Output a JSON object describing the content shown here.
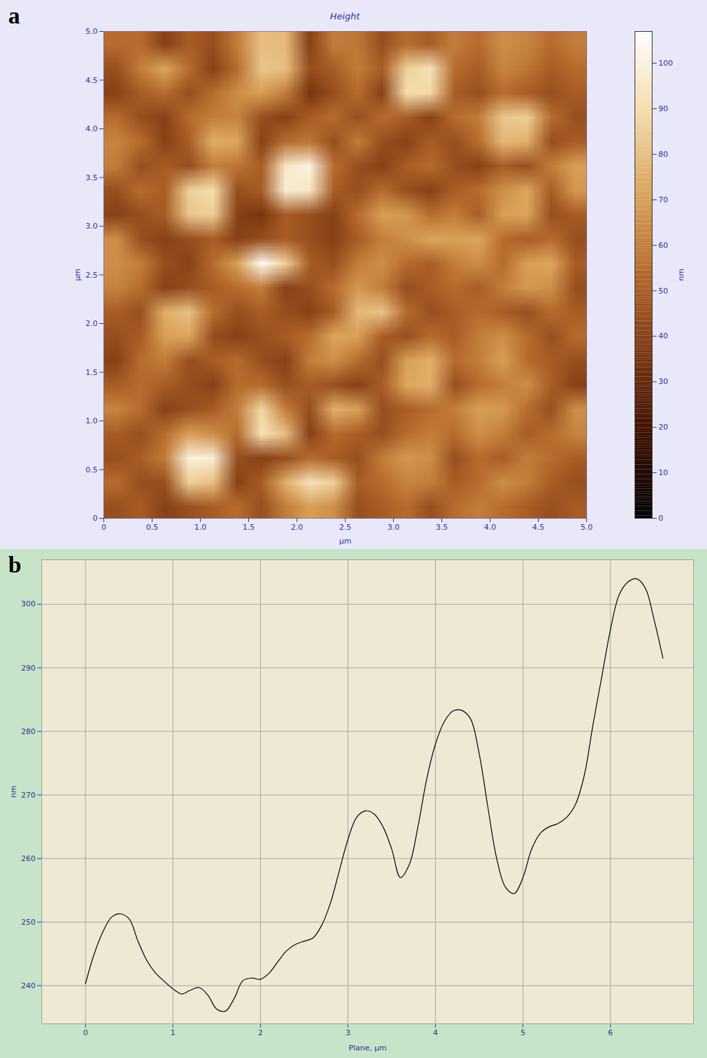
{
  "chart_data": [
    {
      "type": "heatmap",
      "panel_label": "a",
      "title": "Height",
      "x_label": "µm",
      "y_label": "µm",
      "xlim": [
        0,
        5
      ],
      "ylim": [
        0,
        5
      ],
      "xticks": [
        0,
        0.5,
        {
          "value": 1,
          "label": "1.0"
        },
        1.5,
        {
          "value": 2,
          "label": "2.0"
        },
        2.5,
        {
          "value": 3,
          "label": "3.0"
        },
        3.5,
        {
          "value": 4,
          "label": "4.0"
        },
        4.5,
        {
          "value": 5,
          "label": "5.0"
        }
      ],
      "yticks": [
        0,
        0.5,
        {
          "value": 1,
          "label": "1.0"
        },
        1.5,
        {
          "value": 2,
          "label": "2.0"
        },
        2.5,
        {
          "value": 3,
          "label": "3.0"
        },
        3.5,
        {
          "value": 4,
          "label": "4.0"
        },
        4.5,
        {
          "value": 5,
          "label": "5.0"
        }
      ],
      "cells": [
        [
          55,
          55,
          40,
          50,
          45,
          60,
          80,
          78,
          40,
          60,
          58,
          45,
          55,
          50,
          60,
          55,
          65,
          62,
          55,
          60
        ],
        [
          45,
          60,
          72,
          55,
          40,
          55,
          82,
          80,
          45,
          50,
          60,
          50,
          85,
          92,
          55,
          50,
          62,
          58,
          50,
          55
        ],
        [
          40,
          50,
          55,
          45,
          55,
          65,
          70,
          60,
          35,
          45,
          55,
          40,
          90,
          88,
          50,
          45,
          55,
          50,
          45,
          50
        ],
        [
          55,
          45,
          40,
          55,
          60,
          62,
          45,
          40,
          50,
          55,
          45,
          55,
          50,
          40,
          55,
          60,
          82,
          85,
          55,
          45
        ],
        [
          62,
          55,
          40,
          50,
          75,
          72,
          40,
          55,
          58,
          45,
          60,
          45,
          40,
          50,
          45,
          55,
          78,
          75,
          45,
          50
        ],
        [
          60,
          45,
          50,
          45,
          60,
          58,
          50,
          95,
          100,
          55,
          45,
          40,
          50,
          55,
          45,
          40,
          50,
          45,
          60,
          70
        ],
        [
          45,
          55,
          50,
          85,
          90,
          45,
          50,
          98,
          95,
          50,
          45,
          55,
          45,
          40,
          50,
          55,
          65,
          72,
          50,
          68
        ],
        [
          40,
          45,
          50,
          82,
          85,
          40,
          35,
          50,
          45,
          40,
          55,
          70,
          68,
          55,
          60,
          50,
          70,
          72,
          45,
          50
        ],
        [
          65,
          45,
          40,
          45,
          50,
          40,
          45,
          50,
          45,
          40,
          50,
          60,
          65,
          72,
          70,
          72,
          55,
          50,
          55,
          45
        ],
        [
          65,
          60,
          45,
          40,
          55,
          70,
          105,
          85,
          50,
          45,
          60,
          65,
          55,
          50,
          60,
          65,
          55,
          70,
          72,
          50
        ],
        [
          62,
          55,
          40,
          45,
          50,
          55,
          60,
          40,
          45,
          55,
          68,
          60,
          45,
          50,
          55,
          50,
          60,
          68,
          65,
          45
        ],
        [
          50,
          45,
          75,
          80,
          55,
          45,
          50,
          45,
          40,
          50,
          78,
          82,
          55,
          45,
          50,
          55,
          50,
          45,
          55,
          50
        ],
        [
          45,
          50,
          70,
          72,
          45,
          40,
          45,
          50,
          55,
          72,
          70,
          50,
          45,
          55,
          50,
          60,
          65,
          55,
          45,
          55
        ],
        [
          40,
          55,
          60,
          45,
          50,
          55,
          45,
          40,
          60,
          65,
          55,
          45,
          70,
          75,
          55,
          60,
          70,
          55,
          50,
          45
        ],
        [
          50,
          55,
          50,
          45,
          40,
          55,
          55,
          45,
          50,
          45,
          40,
          50,
          72,
          75,
          45,
          55,
          60,
          65,
          50,
          40
        ],
        [
          62,
          55,
          40,
          45,
          50,
          60,
          88,
          60,
          45,
          75,
          70,
          45,
          50,
          55,
          60,
          70,
          68,
          55,
          45,
          65
        ],
        [
          50,
          45,
          55,
          70,
          65,
          55,
          92,
          80,
          40,
          55,
          50,
          45,
          55,
          60,
          55,
          65,
          60,
          50,
          55,
          62
        ],
        [
          45,
          50,
          60,
          100,
          98,
          45,
          40,
          45,
          55,
          50,
          45,
          60,
          68,
          65,
          45,
          55,
          50,
          60,
          55,
          50
        ],
        [
          55,
          45,
          45,
          85,
          80,
          40,
          50,
          75,
          92,
          85,
          50,
          55,
          62,
          60,
          50,
          55,
          65,
          60,
          50,
          45
        ],
        [
          45,
          50,
          40,
          45,
          50,
          55,
          45,
          60,
          70,
          65,
          45,
          50,
          55,
          45,
          55,
          60,
          55,
          50,
          45,
          50
        ]
      ],
      "colorbar": {
        "label": "nm",
        "range": [
          0,
          107
        ],
        "ticks": [
          0,
          10,
          20,
          30,
          40,
          50,
          60,
          70,
          80,
          90,
          100
        ],
        "colors": [
          "#000000",
          "#3a0e00",
          "#7a3510",
          "#b4672a",
          "#dca35a",
          "#f4dcaa",
          "#ffffff"
        ]
      }
    },
    {
      "type": "line",
      "panel_label": "b",
      "x_label": "Plane, µm",
      "y_label": "nm",
      "xlim": [
        -0.5,
        6.95
      ],
      "ylim": [
        234,
        307
      ],
      "xticks": [
        0,
        1,
        2,
        3,
        4,
        5,
        6
      ],
      "yticks": [
        240,
        250,
        260,
        270,
        280,
        290,
        300
      ],
      "grid": true,
      "color": "#000000",
      "x": [
        0,
        0.1,
        0.2,
        0.3,
        0.4,
        0.5,
        0.6,
        0.7,
        0.8,
        0.9,
        1.0,
        1.1,
        1.2,
        1.3,
        1.4,
        1.5,
        1.6,
        1.7,
        1.8,
        1.9,
        2.0,
        2.1,
        2.2,
        2.3,
        2.4,
        2.5,
        2.6,
        2.7,
        2.8,
        2.9,
        3.0,
        3.1,
        3.2,
        3.3,
        3.4,
        3.5,
        3.6,
        3.7,
        3.8,
        3.9,
        4.0,
        4.1,
        4.2,
        4.3,
        4.4,
        4.5,
        4.6,
        4.7,
        4.8,
        4.9,
        5.0,
        5.1,
        5.2,
        5.3,
        5.4,
        5.5,
        5.6,
        5.7,
        5.8,
        5.9,
        6.0,
        6.1,
        6.2,
        6.3,
        6.4,
        6.5,
        6.6
      ],
      "values": [
        240.3,
        245,
        248.5,
        250.8,
        251.3,
        250.5,
        247,
        244,
        242,
        240.7,
        239.5,
        238.7,
        239.3,
        239.7,
        238.5,
        236.3,
        236,
        238,
        240.8,
        241.2,
        241,
        242,
        243.8,
        245.5,
        246.5,
        247,
        247.5,
        249.5,
        253,
        258,
        263,
        266.5,
        267.5,
        267,
        265,
        261.5,
        257,
        259,
        265,
        272.5,
        278,
        281.5,
        283.2,
        283.3,
        282,
        276.5,
        268,
        260,
        255.5,
        254.5,
        257,
        261.5,
        264,
        265,
        265.5,
        266.5,
        268.5,
        273,
        281,
        288.5,
        296,
        301.5,
        303.5,
        304,
        302.5,
        297.5,
        291.5
      ]
    }
  ]
}
